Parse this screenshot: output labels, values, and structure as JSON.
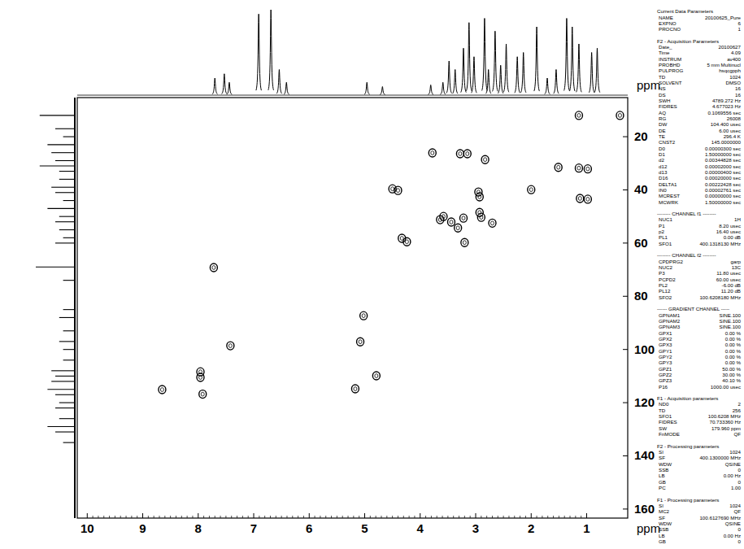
{
  "chart_data": {
    "type": "scatter",
    "x_label": "ppm",
    "y_label": "ppm",
    "xlim": [
      10.18,
      0.26
    ],
    "ylim": [
      5.3,
      163.4
    ],
    "xticks": [
      10,
      9,
      8,
      7,
      6,
      5,
      4,
      3,
      2,
      1
    ],
    "yticks": [
      20,
      40,
      60,
      80,
      100,
      120,
      140,
      160
    ],
    "grid": false,
    "series": [
      {
        "type": "scatter",
        "marker": "contour",
        "color": "#000000",
        "x": [
          1.14,
          0.4,
          3.78,
          3.28,
          3.15,
          2.83,
          1.51,
          1.14,
          0.98,
          4.5,
          4.4,
          2.0,
          2.95,
          2.93,
          1.12,
          0.98,
          2.93,
          2.9,
          3.22,
          3.64,
          3.58,
          3.44,
          3.32,
          4.33,
          4.24,
          3.2,
          2.7,
          7.72,
          5.02,
          5.08,
          7.42,
          7.96,
          7.96,
          8.65,
          7.92,
          5.17,
          4.79
        ],
        "values": [
          12,
          12,
          26.1,
          26.4,
          26.4,
          28.6,
          31.5,
          31.8,
          32.1,
          39.6,
          40.2,
          39.9,
          40.8,
          42.6,
          43.2,
          43.5,
          48.5,
          50.3,
          50.6,
          51.2,
          50.0,
          52.1,
          54.3,
          58.2,
          59.5,
          59.8,
          52.5,
          69.2,
          87.3,
          97.1,
          98.6,
          108.4,
          110.5,
          115.1,
          116.8,
          114.8,
          109.9
        ]
      }
    ],
    "top_projection": {
      "x": [
        7.7,
        7.53,
        7.44,
        6.91,
        6.69,
        6.54,
        6.41,
        4.96,
        4.68,
        3.81,
        3.59,
        3.48,
        3.37,
        3.22,
        3.12,
        3.03,
        2.84,
        2.77,
        2.65,
        2.55,
        2.45,
        2.25,
        2.14,
        1.9,
        1.71,
        1.55,
        1.36,
        1.26,
        1.14,
        0.91,
        0.81
      ],
      "values": [
        0.2,
        0.25,
        0.15,
        0.95,
        1.0,
        0.3,
        0.15,
        0.15,
        0.1,
        0.12,
        0.15,
        0.4,
        0.3,
        0.55,
        0.85,
        0.45,
        0.9,
        0.3,
        0.75,
        0.35,
        0.6,
        0.45,
        0.5,
        0.8,
        0.2,
        0.3,
        0.9,
        0.8,
        0.6,
        0.5,
        0.55
      ]
    },
    "left_projection": {
      "y": [
        12,
        17,
        20,
        23,
        26,
        29,
        31,
        33,
        36,
        39,
        41,
        44,
        47,
        50,
        52,
        55,
        58,
        60,
        69,
        74,
        85,
        88,
        93,
        97,
        100,
        104,
        108,
        110,
        112,
        115,
        117,
        120,
        122,
        126,
        129,
        131,
        135
      ],
      "values": [
        0.9,
        0.5,
        0.3,
        0.7,
        0.6,
        0.5,
        0.9,
        0.4,
        0.4,
        0.6,
        0.5,
        0.3,
        0.7,
        0.4,
        0.5,
        0.4,
        0.3,
        0.5,
        1.0,
        0.3,
        0.3,
        0.4,
        0.3,
        0.4,
        0.3,
        0.3,
        0.6,
        0.5,
        0.6,
        0.7,
        0.5,
        0.4,
        0.5,
        0.4,
        0.7,
        0.5,
        0.3
      ]
    }
  },
  "parameter_panel": [
    {
      "heading": "Current Data Parameters",
      "rows": [
        [
          "NAME",
          "20100625_Pure"
        ],
        [
          "EXPNO",
          "6"
        ],
        [
          "PROCNO",
          "1"
        ]
      ]
    },
    {
      "heading": "F2 - Acquisition Parameters",
      "rows": [
        [
          "Date_",
          "20100627"
        ],
        [
          "Time",
          "4.09"
        ],
        [
          "INSTRUM",
          "av400"
        ],
        [
          "PROBHD",
          "5 mm Multinucl"
        ],
        [
          "PULPROG",
          "hsqcgpph"
        ],
        [
          "TD",
          "1024"
        ],
        [
          "SOLVENT",
          "DMSO"
        ],
        [
          "NS",
          "16"
        ],
        [
          "DS",
          "16"
        ],
        [
          "SWH",
          "4789.272 Hz"
        ],
        [
          "FIDRES",
          "4.677023 Hz"
        ],
        [
          "AQ",
          "0.1069556 sec"
        ],
        [
          "RG",
          "26008"
        ],
        [
          "DW",
          "104.400 usec"
        ],
        [
          "DE",
          "6.00 usec"
        ],
        [
          "TE",
          "296.4 K"
        ],
        [
          "CNST2",
          "145.0000000"
        ],
        [
          "D0",
          "0.00000300 sec"
        ],
        [
          "D1",
          "1.50000000 sec"
        ],
        [
          "d2",
          "0.00344828 sec"
        ],
        [
          "d12",
          "0.00002000 sec"
        ],
        [
          "d13",
          "0.00000400 sec"
        ],
        [
          "D16",
          "0.00020000 sec"
        ],
        [
          "DELTA1",
          "0.00222428 sec"
        ],
        [
          "IN0",
          "0.00002761 sec"
        ],
        [
          "MCREST",
          "0.00000000 sec"
        ],
        [
          "MCWRK",
          "1.50000000 sec"
        ]
      ]
    },
    {
      "heading": "-------- CHANNEL f1 --------",
      "rows": [
        [
          "NUC1",
          "1H"
        ],
        [
          "P1",
          "8.20 usec"
        ],
        [
          "p2",
          "16.40 usec"
        ],
        [
          "PL1",
          "0.00 dB"
        ],
        [
          "SFO1",
          "400.1318130 MHz"
        ]
      ]
    },
    {
      "heading": "-------- CHANNEL f2 --------",
      "rows": [
        [
          "CPDPRG2",
          "garp"
        ],
        [
          "NUC2",
          "13C"
        ],
        [
          "P3",
          "11.80 usec"
        ],
        [
          "PCPD2",
          "60.00 usec"
        ],
        [
          "PL2",
          "-6.00 dB"
        ],
        [
          "PL12",
          "11.20 dB"
        ],
        [
          "SFO2",
          "100.6208180 MHz"
        ]
      ]
    },
    {
      "heading": "------ GRADIENT CHANNEL -----",
      "rows": [
        [
          "GPNAM1",
          "SINE.100"
        ],
        [
          "GPNAM2",
          "SINE.100"
        ],
        [
          "GPNAM3",
          "SINE.100"
        ],
        [
          "GPX1",
          "0.00 %"
        ],
        [
          "GPX2",
          "0.00 %"
        ],
        [
          "GPX3",
          "0.00 %"
        ],
        [
          "GPY1",
          "0.00 %"
        ],
        [
          "GPY2",
          "0.00 %"
        ],
        [
          "GPY3",
          "0.00 %"
        ],
        [
          "GPZ1",
          "50.00 %"
        ],
        [
          "GPZ2",
          "30.00 %"
        ],
        [
          "GPZ3",
          "40.10 %"
        ],
        [
          "P16",
          "1000.00 usec"
        ]
      ]
    },
    {
      "heading": "F1 - Acquisition parameters",
      "rows": [
        [
          "ND0",
          "2"
        ],
        [
          "TD",
          "256"
        ],
        [
          "SFO1",
          "100.6208 MHz"
        ],
        [
          "FIDRES",
          "70.733360 Hz"
        ],
        [
          "SW",
          "179.960 ppm"
        ],
        [
          "FnMODE",
          "QF"
        ]
      ]
    },
    {
      "heading": "F2 - Processing parameters",
      "rows": [
        [
          "SI",
          "1024"
        ],
        [
          "SF",
          "400.1300000 MHz"
        ],
        [
          "WDW",
          "QSINE"
        ],
        [
          "SSB",
          "0"
        ],
        [
          "LB",
          "0.00 Hz"
        ],
        [
          "GB",
          "0"
        ],
        [
          "PC",
          "1.00"
        ]
      ]
    },
    {
      "heading": "F1 - Processing parameters",
      "rows": [
        [
          "SI",
          "1024"
        ],
        [
          "MC2",
          "QF"
        ],
        [
          "SF",
          "100.6127690 MHz"
        ],
        [
          "WDW",
          "QSINE"
        ],
        [
          "SSB",
          "0"
        ],
        [
          "LB",
          "0.00 Hz"
        ],
        [
          "GB",
          "0"
        ]
      ]
    }
  ]
}
